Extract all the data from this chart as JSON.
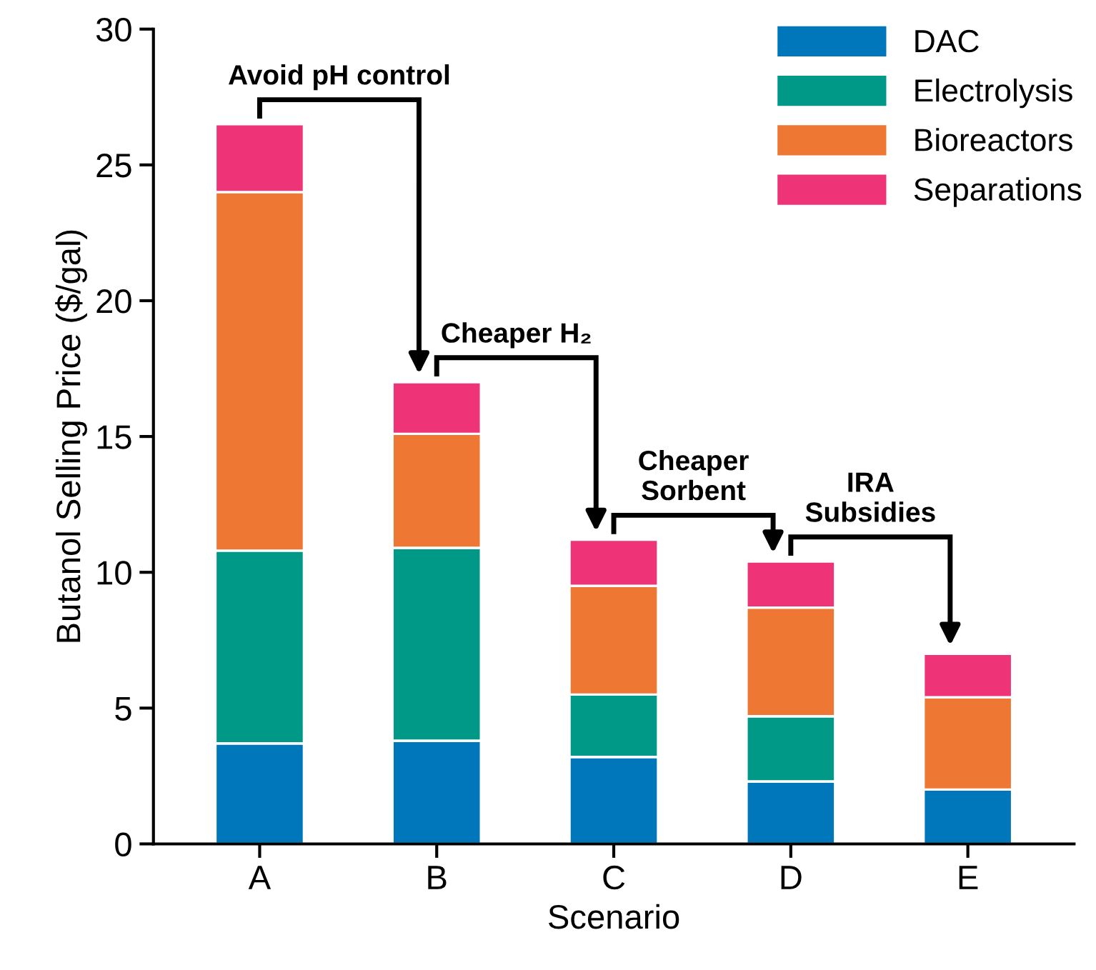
{
  "chart_data": {
    "type": "bar",
    "stacked": true,
    "xlabel": "Scenario",
    "ylabel": "Butanol Selling Price ($/gal)",
    "categories": [
      "A",
      "B",
      "C",
      "D",
      "E"
    ],
    "series": [
      {
        "name": "DAC",
        "color": "#0077bb",
        "values": [
          3.7,
          3.8,
          3.2,
          2.3,
          2.0
        ]
      },
      {
        "name": "Electrolysis",
        "color": "#009988",
        "values": [
          7.1,
          7.1,
          2.3,
          2.4,
          0
        ]
      },
      {
        "name": "Bioreactors",
        "color": "#ee7733",
        "values": [
          13.2,
          4.2,
          4.0,
          4.0,
          3.4
        ]
      },
      {
        "name": "Separations",
        "color": "#ee3377",
        "values": [
          2.5,
          1.9,
          1.7,
          1.7,
          1.6
        ]
      }
    ],
    "annotations": [
      "Avoid pH control",
      "Cheaper H₂",
      "Cheaper\nSorbent",
      "IRA\nSubsidies"
    ],
    "ylim": [
      0,
      30
    ],
    "yticks": [
      0,
      5,
      10,
      15,
      20,
      25,
      30
    ],
    "grid": false,
    "legend": "top right"
  }
}
